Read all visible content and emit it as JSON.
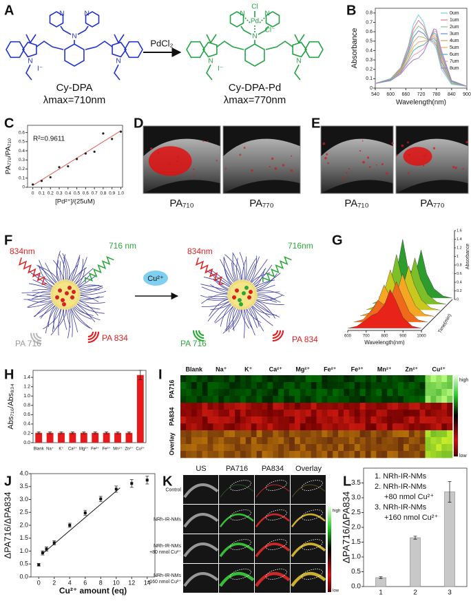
{
  "panel_labels": [
    "A",
    "B",
    "C",
    "D",
    "E",
    "F",
    "G",
    "H",
    "I",
    "J",
    "K",
    "L"
  ],
  "scheme": {
    "reagent": "PdCl₂",
    "left": {
      "name": "Cy-DPA",
      "lambda": "λmax=710nm",
      "atoms": [
        "N",
        "N",
        "N",
        "N",
        "N",
        "I⁻"
      ]
    },
    "right": {
      "name": "Cy-DPA-Pd",
      "lambda": "λmax=770nm",
      "atoms": [
        "Cl",
        "Pd",
        "Cl⁻",
        "N",
        "N",
        "N",
        "N",
        "N",
        "I⁻"
      ]
    }
  },
  "panel_d": {
    "labels": [
      "PA₇₁₀",
      "PA₇₇₀"
    ]
  },
  "panel_e": {
    "labels": [
      "PA₇₁₀",
      "PA₇₇₀"
    ]
  },
  "panel_f": {
    "left": {
      "laser_red": "834nm",
      "laser_green": "716 nm",
      "signal_gray": "PA 716",
      "signal_red": "PA 834"
    },
    "ion": "Cu²⁺",
    "right": {
      "laser_red": "834nm",
      "laser_green": "716nm",
      "signal_green": "PA 716",
      "signal_red": "PA 834"
    }
  },
  "panel_i": {
    "columns": [
      "Blank",
      "Na⁺",
      "K⁺",
      "Ca²⁺",
      "Mg²⁺",
      "Fe²⁺",
      "Fe³⁺",
      "Mn²⁺",
      "Zn²⁺",
      "Cu²⁺"
    ],
    "rows": [
      "PA716",
      "PA834",
      "Overlay"
    ],
    "scale": [
      "high",
      "low"
    ]
  },
  "panel_k": {
    "columns": [
      "US",
      "PA716",
      "PA834",
      "Overlay"
    ],
    "rows": [
      [
        "Control"
      ],
      [
        "NRh-IR-NMs"
      ],
      [
        "NRh-IR-NMs",
        "+80 nmol Cu²⁺"
      ],
      [
        "NRh-IR-NMs",
        "+160 nmol Cu²⁺"
      ]
    ],
    "scale": [
      "high",
      "low"
    ]
  },
  "chart_data": [
    {
      "type": "line",
      "x": [
        540,
        600,
        640,
        670,
        690,
        710,
        730,
        750,
        770,
        780,
        800,
        840,
        900
      ],
      "xlim": [
        540,
        900
      ],
      "xticks": [
        540,
        600,
        660,
        720,
        780,
        840,
        900
      ],
      "ylim": [
        0,
        0.85
      ],
      "yticks": [
        0,
        0.1,
        0.2,
        0.3,
        0.4,
        0.5,
        0.6,
        0.7,
        0.8
      ],
      "xlabel": "Wavelength(nm)",
      "ylabel": "Absorbance",
      "legend": "upper right",
      "series": [
        {
          "name": "0um",
          "color": "#7ec8e3",
          "values": [
            0.05,
            0.1,
            0.22,
            0.45,
            0.68,
            0.78,
            0.7,
            0.52,
            0.47,
            0.42,
            0.2,
            0.04,
            0.02
          ]
        },
        {
          "name": "1um",
          "color": "#e07b91",
          "values": [
            0.05,
            0.1,
            0.21,
            0.43,
            0.63,
            0.72,
            0.66,
            0.52,
            0.49,
            0.45,
            0.23,
            0.05,
            0.02
          ]
        },
        {
          "name": "2um",
          "color": "#8fbc8f",
          "values": [
            0.05,
            0.1,
            0.2,
            0.4,
            0.59,
            0.66,
            0.62,
            0.52,
            0.51,
            0.47,
            0.25,
            0.05,
            0.02
          ]
        },
        {
          "name": "3um",
          "color": "#5b8fd6",
          "values": [
            0.05,
            0.09,
            0.19,
            0.38,
            0.54,
            0.61,
            0.58,
            0.51,
            0.53,
            0.5,
            0.28,
            0.06,
            0.02
          ]
        },
        {
          "name": "4um",
          "color": "#c9a26b",
          "values": [
            0.05,
            0.09,
            0.19,
            0.35,
            0.49,
            0.55,
            0.54,
            0.51,
            0.55,
            0.52,
            0.3,
            0.06,
            0.02
          ]
        },
        {
          "name": "5um",
          "color": "#f2a65a",
          "values": [
            0.05,
            0.09,
            0.18,
            0.33,
            0.44,
            0.49,
            0.5,
            0.51,
            0.57,
            0.55,
            0.33,
            0.07,
            0.02
          ]
        },
        {
          "name": "6um",
          "color": "#3fb0ac",
          "values": [
            0.05,
            0.09,
            0.17,
            0.3,
            0.4,
            0.44,
            0.46,
            0.51,
            0.59,
            0.57,
            0.35,
            0.07,
            0.02
          ]
        },
        {
          "name": "7um",
          "color": "#f08fb0",
          "values": [
            0.05,
            0.08,
            0.16,
            0.28,
            0.35,
            0.38,
            0.42,
            0.5,
            0.61,
            0.6,
            0.38,
            0.08,
            0.02
          ]
        },
        {
          "name": "8um",
          "color": "#9b7fd1",
          "values": [
            0.05,
            0.08,
            0.15,
            0.25,
            0.3,
            0.32,
            0.38,
            0.5,
            0.63,
            0.62,
            0.4,
            0.08,
            0.02
          ]
        }
      ]
    },
    {
      "type": "scatter",
      "x": [
        0,
        0.1,
        0.2,
        0.3,
        0.4,
        0.5,
        0.6,
        0.7,
        0.8,
        0.9,
        1.0
      ],
      "values": [
        0.03,
        0.07,
        0.11,
        0.22,
        0.23,
        0.31,
        0.37,
        0.39,
        0.59,
        0.53,
        0.61
      ],
      "color": "#222222",
      "line_color": "#e05a4a",
      "trendline": {
        "x": [
          0,
          1.0
        ],
        "y": [
          0.02,
          0.62
        ]
      },
      "annotation": "R²=0.9611",
      "xlim": [
        -0.06,
        1.02
      ],
      "xticks": [
        0,
        0.1,
        0.2,
        0.3,
        0.4,
        0.5,
        0.6,
        0.7,
        0.8,
        0.9,
        {
          "value": 1,
          "label": "1.0"
        }
      ],
      "ylim": [
        0,
        0.68
      ],
      "yticks": [
        0,
        0.1,
        0.2,
        0.3,
        0.4,
        0.5,
        0.6
      ],
      "xlabel": "[Pd²⁺]/(25uM)",
      "ylabel": "PA₇₇₀/PA₇₁₀"
    },
    {
      "type": "waterfall",
      "x": [
        600,
        650,
        700,
        730,
        760,
        800,
        830,
        860,
        900,
        950,
        1000
      ],
      "xlim": [
        600,
        1000
      ],
      "xticks": [
        600,
        700,
        800,
        900,
        1000
      ],
      "ylim": [
        0,
        1.6
      ],
      "yticks": [
        0,
        0.2,
        0.4,
        0.6,
        0.8,
        1,
        1.2,
        1.4,
        1.6
      ],
      "xlabel": "Wavelength(nm)",
      "ylabel": "Absorbance",
      "zlabel": "Time(min)",
      "series": [
        {
          "color": "#e8231a",
          "values": [
            0.05,
            0.1,
            0.25,
            0.35,
            0.4,
            0.6,
            0.95,
            0.7,
            0.3,
            0.1,
            0.05
          ]
        },
        {
          "color": "#f06a1c",
          "values": [
            0.05,
            0.11,
            0.34,
            0.56,
            0.46,
            0.6,
            0.99,
            0.68,
            0.29,
            0.1,
            0.05
          ]
        },
        {
          "color": "#f5a623",
          "values": [
            0.05,
            0.12,
            0.43,
            0.77,
            0.52,
            0.6,
            1.03,
            0.66,
            0.28,
            0.09,
            0.04
          ]
        },
        {
          "color": "#c8c81e",
          "values": [
            0.05,
            0.13,
            0.52,
            0.98,
            0.58,
            0.6,
            1.07,
            0.64,
            0.27,
            0.09,
            0.04
          ]
        },
        {
          "color": "#7cbf28",
          "values": [
            0.05,
            0.14,
            0.61,
            1.19,
            0.64,
            0.6,
            1.11,
            0.62,
            0.26,
            0.08,
            0.03
          ]
        },
        {
          "color": "#2e9b2e",
          "values": [
            0.05,
            0.15,
            0.7,
            1.4,
            0.7,
            0.6,
            1.15,
            0.6,
            0.25,
            0.08,
            0.03
          ]
        }
      ]
    },
    {
      "type": "bar",
      "categories": [
        "Blank",
        "Na⁺",
        "K⁺",
        "Ca²⁺",
        "Mg²⁺",
        "Fe²⁺",
        "Fe³⁺",
        "Mn²⁺",
        "Zn²⁺",
        "Cu²⁺"
      ],
      "values": [
        0.21,
        0.21,
        0.21,
        0.21,
        0.21,
        0.21,
        0.21,
        0.21,
        0.21,
        1.45
      ],
      "errors": [
        0.02,
        0.02,
        0.02,
        0.02,
        0.02,
        0.02,
        0.02,
        0.02,
        0.02,
        0.1
      ],
      "color": "#e8191a",
      "ylim": [
        0,
        1.55
      ],
      "yticks": [
        {
          "value": 0,
          "label": "0.0"
        },
        0.2,
        0.4,
        0.6,
        0.8,
        {
          "value": 1,
          "label": "1.0"
        },
        1.2,
        1.4
      ],
      "ylabel": "Abs₇₁₆/Abs₈₃₄"
    },
    {
      "type": "scatter",
      "x": [
        0,
        0.5,
        1,
        2,
        4,
        6,
        8,
        10,
        12,
        14
      ],
      "values": [
        0.47,
        0.93,
        1.08,
        1.32,
        2.0,
        2.48,
        3.02,
        3.4,
        3.62,
        3.75
      ],
      "errors": [
        0.05,
        0.08,
        0.08,
        0.08,
        0.08,
        0.1,
        0.1,
        0.12,
        0.15,
        0.15
      ],
      "color": "#111111",
      "line_color": "#111111",
      "trendline": {
        "x": [
          0.5,
          10.5
        ],
        "y": [
          0.9,
          3.45
        ]
      },
      "xlim": [
        -1,
        15
      ],
      "xticks": [
        0,
        2,
        4,
        6,
        8,
        10,
        12,
        14
      ],
      "ylim": [
        0,
        4
      ],
      "yticks": [
        {
          "value": 0,
          "label": "0.0"
        },
        0.5,
        {
          "value": 1,
          "label": "1.0"
        },
        1.5,
        {
          "value": 2,
          "label": "2.0"
        },
        2.5,
        {
          "value": 3,
          "label": "3.0"
        },
        3.5,
        {
          "value": 4,
          "label": "4.0"
        }
      ],
      "xlabel": "Cu²⁺ amount (eq)",
      "ylabel": "ΔPA716/ΔPA834"
    },
    {
      "type": "bar",
      "categories": [
        "1",
        "2",
        "3"
      ],
      "values": [
        0.3,
        1.65,
        3.2
      ],
      "errors": [
        0.03,
        0.05,
        0.35
      ],
      "color": "#c8c8c8",
      "ylim": [
        0,
        4
      ],
      "yticks": [
        {
          "value": 0,
          "label": "0.0"
        },
        0.5,
        {
          "value": 1,
          "label": "1.0"
        },
        1.5,
        {
          "value": 2,
          "label": "2.0"
        },
        2.5,
        {
          "value": 3,
          "label": "3.0"
        },
        3.5
      ],
      "ylabel": "ΔPA716/ΔPA834",
      "annotations": [
        "1. NRh-IR-NMs",
        "2. NRh-IR-NMs",
        "+80 nmol Cu²⁺",
        "3. NRh-IR-NMs",
        "+160 nmol Cu²⁺"
      ]
    }
  ]
}
